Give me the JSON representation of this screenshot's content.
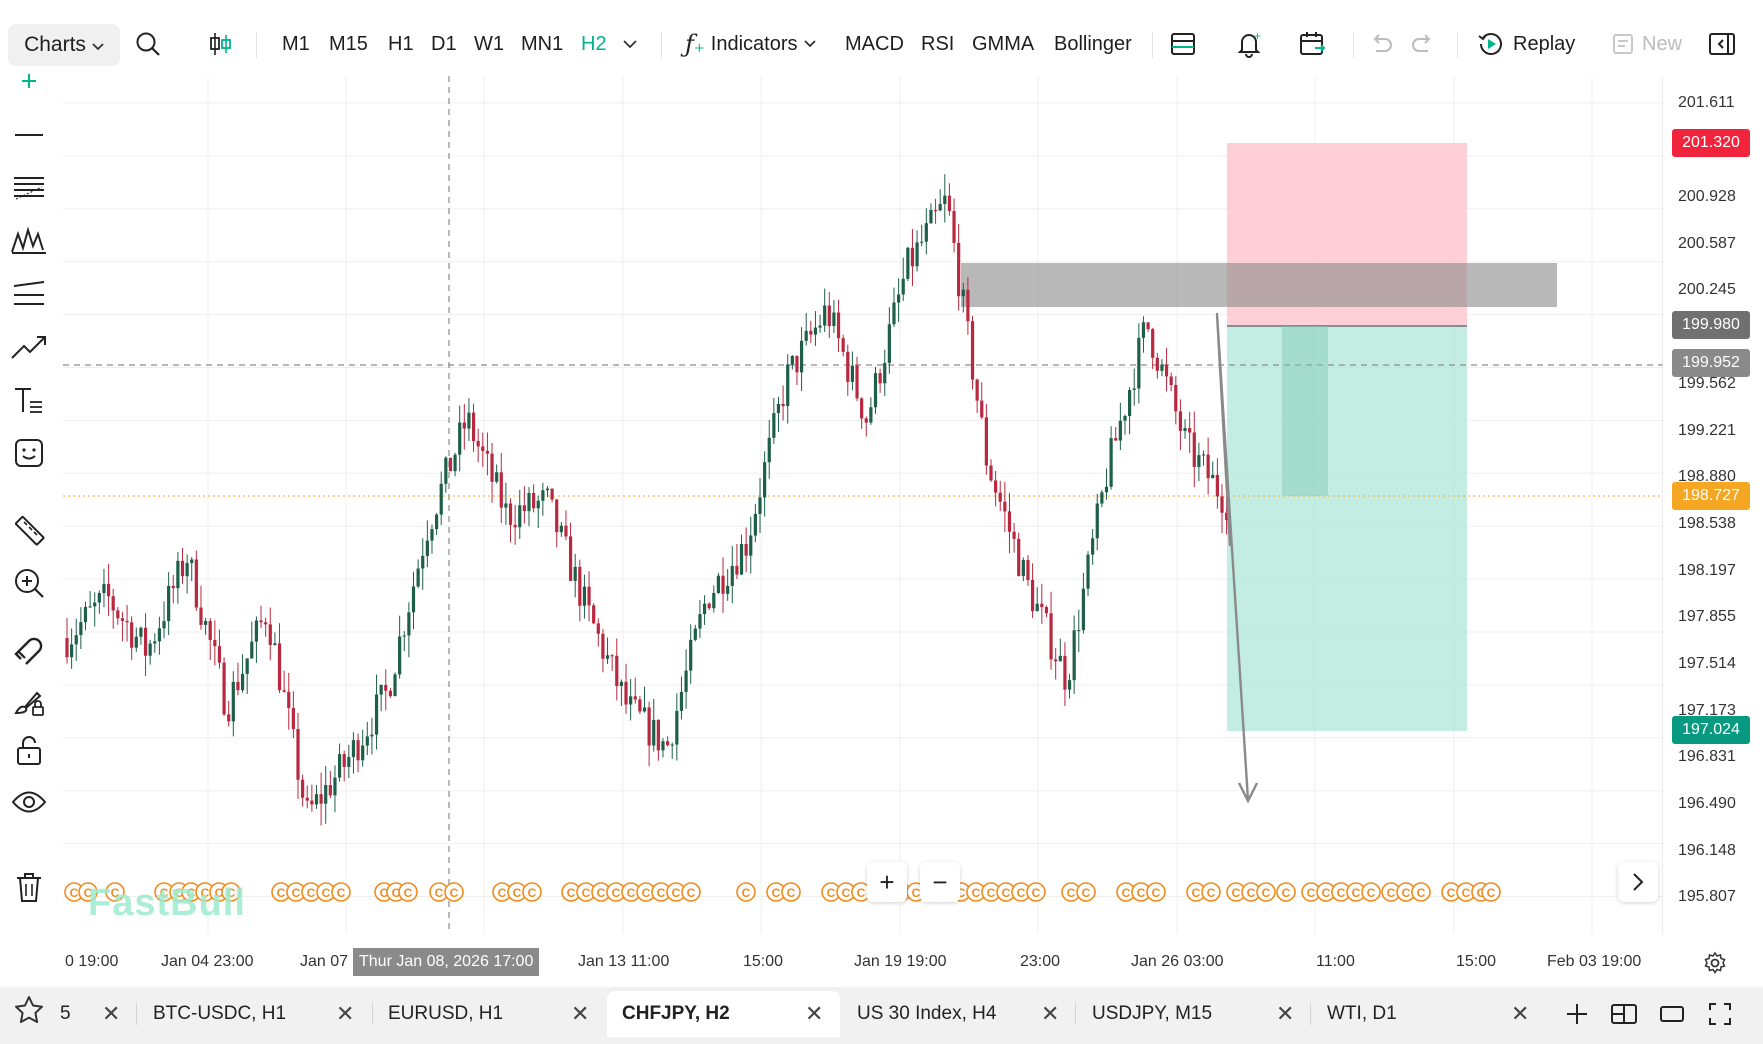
{
  "toolbar": {
    "charts_label": "Charts",
    "timeframes": [
      "M1",
      "M15",
      "H1",
      "D1",
      "W1",
      "MN1",
      "H2"
    ],
    "active_timeframe": "H2",
    "indicators_label": "Indicators",
    "quick_indicators": [
      "MACD",
      "RSI",
      "GMMA",
      "Bollinger"
    ],
    "replay_label": "Replay",
    "new_label": "New"
  },
  "price_axis": {
    "labels": [
      "201.611",
      "200.928",
      "200.587",
      "200.245",
      "199.562",
      "199.221",
      "198.880",
      "198.538",
      "198.197",
      "197.855",
      "197.514",
      "197.173",
      "196.831",
      "196.490",
      "196.148",
      "195.807"
    ],
    "tags": {
      "stop_loss": "201.320",
      "entry": "199.980",
      "crosshair": "199.952",
      "current": "198.727",
      "take_profit": "197.024"
    }
  },
  "time_axis": {
    "labels": [
      "0 19:00",
      "Jan 04 23:00",
      "Jan 07",
      "Jan 13 11:00",
      "15:00",
      "Jan 19 19:00",
      "23:00",
      "Jan 26 03:00",
      "11:00",
      "15:00",
      "Feb 03 19:00"
    ],
    "crosshair_label": "Thur Jan 08, 2026 17:00"
  },
  "watermark": "FastBull",
  "tabs": [
    {
      "label": "5",
      "active": false
    },
    {
      "label": "BTC-USDC, H1",
      "active": false
    },
    {
      "label": "EURUSD, H1",
      "active": false
    },
    {
      "label": "CHFJPY, H2",
      "active": true
    },
    {
      "label": "US 30 Index, H4",
      "active": false
    },
    {
      "label": "USDJPY, M15",
      "active": false
    },
    {
      "label": "WTI, D1",
      "active": false
    }
  ],
  "colors": {
    "bull": "#1e5f4a",
    "bear": "#b8283f",
    "accent": "#00b48c",
    "stop_loss_tag": "#f0243c",
    "take_profit_tag": "#089981",
    "current_price_tag": "#f5a623",
    "event_marker": "#f08c1e"
  },
  "chart_data": {
    "type": "candlestick",
    "symbol": "CHFJPY",
    "timeframe": "H2",
    "approx_close_path": [
      197.7,
      198.0,
      197.6,
      198.3,
      197.2,
      197.9,
      196.4,
      196.8,
      197.3,
      198.5,
      199.3,
      198.6,
      198.7,
      197.9,
      197.2,
      196.9,
      198.0,
      198.4,
      199.6,
      200.1,
      199.3,
      200.4,
      200.9,
      199.0,
      198.1,
      197.4,
      198.9,
      200.0,
      199.1,
      198.7
    ],
    "position_tool": {
      "entry": 199.98,
      "stop_loss": 201.32,
      "take_profit": 197.024,
      "side": "short"
    },
    "zone": {
      "top": 200.4,
      "bottom": 200.0
    },
    "current_price": 198.727,
    "crosshair_price": 199.952
  }
}
